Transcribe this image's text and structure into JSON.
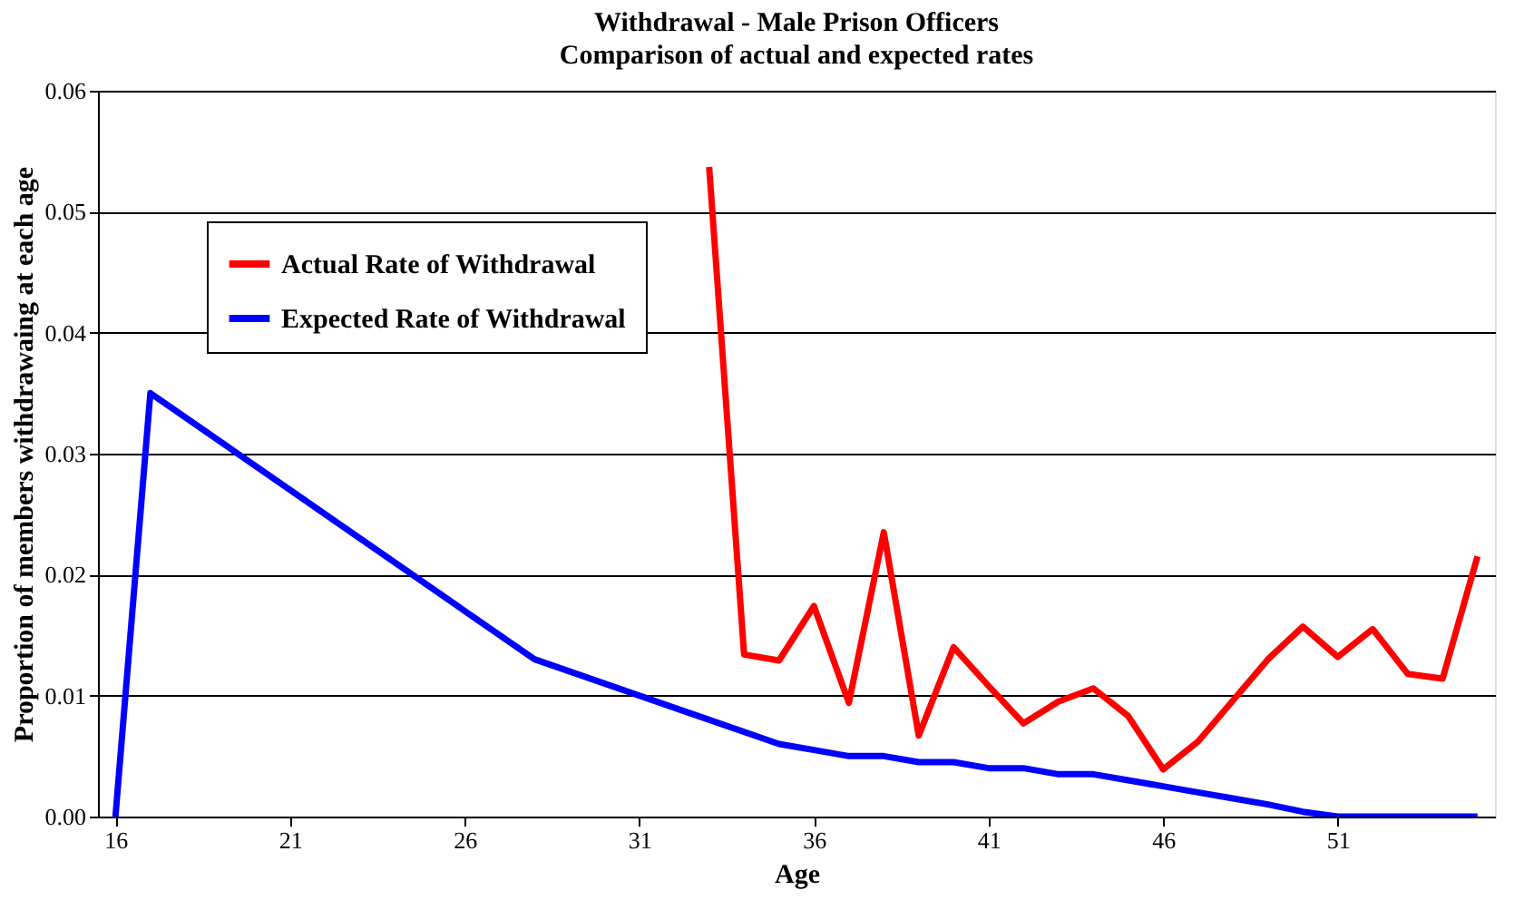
{
  "chart_data": {
    "type": "line",
    "title": "Withdrawal - Male Prison Officers",
    "subtitle": "Comparison of actual and expected rates",
    "xlabel": "Age",
    "ylabel": "Proportion of members withdrawaing at each age",
    "xlim": [
      15.5,
      55.5
    ],
    "xticks": [
      16,
      21,
      26,
      31,
      36,
      41,
      46,
      51
    ],
    "ylim": [
      0,
      0.06
    ],
    "yticks": [
      {
        "value": 0,
        "label": "0.00"
      },
      0.01,
      0.02,
      0.03,
      0.04,
      0.05,
      0.06
    ],
    "grid": "y",
    "legend": "top left",
    "line_style": "solid",
    "marker": "none",
    "series": [
      {
        "name": "Actual Rate of Withdrawal",
        "color": "#ff0000",
        "x": [
          33,
          34,
          35,
          36,
          37,
          38,
          39,
          40,
          41,
          42,
          43,
          44,
          45,
          46,
          47,
          48,
          49,
          50,
          51,
          52,
          53,
          54,
          55
        ],
        "values": [
          0.0537,
          0.0134,
          0.0129,
          0.0174,
          0.0094,
          0.0235,
          0.0067,
          0.014,
          0.0108,
          0.0077,
          0.0095,
          0.0106,
          0.0083,
          0.0039,
          0.0062,
          0.0096,
          0.013,
          0.0157,
          0.0132,
          0.0155,
          0.0118,
          0.0114,
          0.0215
        ]
      },
      {
        "name": "Expected Rate of Withdrawal",
        "color": "#0000ff",
        "x": [
          16,
          17,
          28,
          35,
          36,
          37,
          38,
          39,
          40,
          41,
          42,
          43,
          44,
          45,
          46,
          47,
          48,
          49,
          50,
          51,
          52,
          53,
          54,
          55
        ],
        "values": [
          0,
          0.035,
          0.013,
          0.006,
          0.0055,
          0.005,
          0.005,
          0.0045,
          0.0045,
          0.004,
          0.004,
          0.0035,
          0.0035,
          0.003,
          0.0025,
          0.002,
          0.0015,
          0.001,
          0.0004,
          0,
          0,
          0,
          0,
          0
        ]
      }
    ]
  }
}
